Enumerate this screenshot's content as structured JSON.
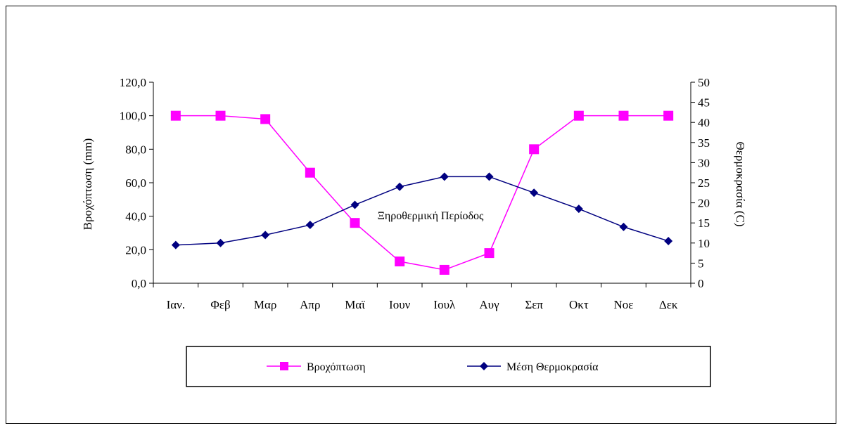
{
  "chart_data": {
    "type": "line",
    "categories": [
      "Ιαν.",
      "Φεβ",
      "Μαρ",
      "Απρ",
      "Μαϊ",
      "Ιουν",
      "Ιουλ",
      "Αυγ",
      "Σεπ",
      "Οκτ",
      "Νοε",
      "Δεκ"
    ],
    "ylabel": "Βροχόπτωση (mm)",
    "y2label": "Θερμοκρασία (C)",
    "ylim": [
      0,
      120
    ],
    "y2lim": [
      0,
      50
    ],
    "yticks": [
      "0,0",
      "20,0",
      "40,0",
      "60,0",
      "80,0",
      "100,0",
      "120,0"
    ],
    "y2ticks": [
      "0",
      "5",
      "10",
      "15",
      "20",
      "25",
      "30",
      "35",
      "40",
      "45",
      "50"
    ],
    "annotation": "Ξηροθερμική Περίοδος",
    "legend_position": "bottom",
    "grid": false,
    "series": [
      {
        "name": "Βροχόπτωση",
        "axis": "left",
        "color": "#ff00ff",
        "marker": "square",
        "values": [
          100,
          100,
          98,
          66,
          36,
          13,
          8,
          18,
          80,
          100,
          100,
          100
        ]
      },
      {
        "name": "Μέση Θερμοκρασία",
        "axis": "right",
        "color": "#000080",
        "marker": "diamond",
        "values": [
          9.5,
          10,
          12,
          14.5,
          19.5,
          24,
          26.5,
          26.5,
          22.5,
          18.5,
          14,
          10.5
        ]
      }
    ]
  }
}
